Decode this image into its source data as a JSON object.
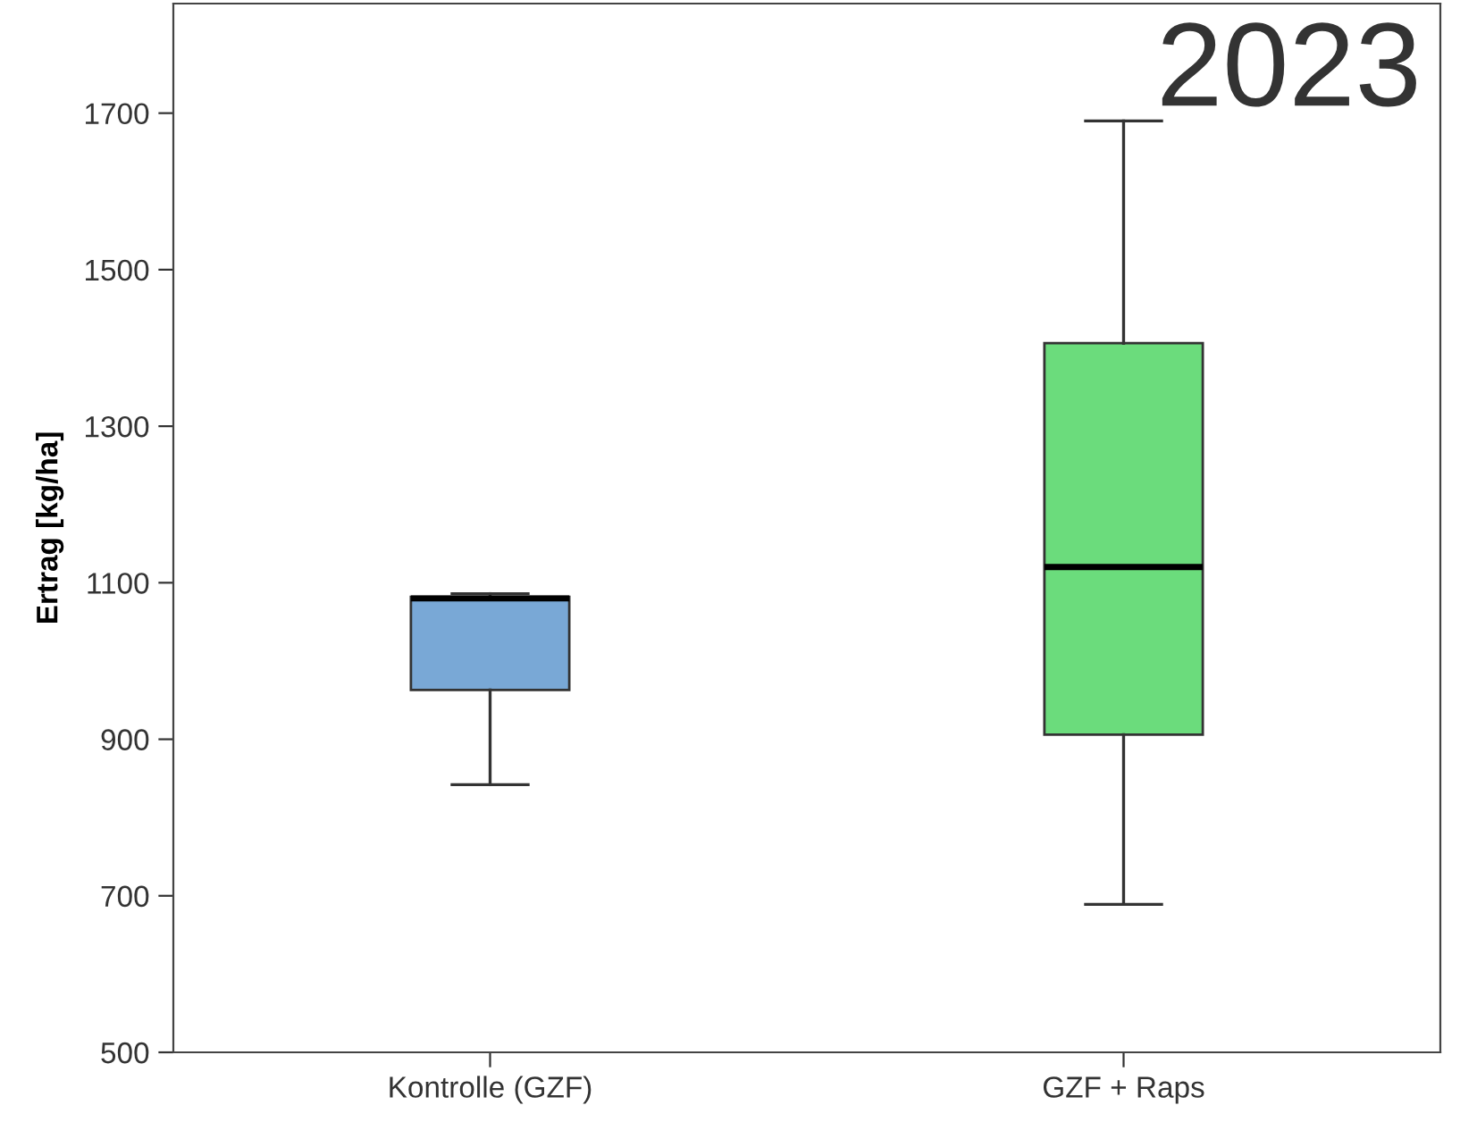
{
  "chart_data": {
    "type": "box",
    "ylabel": "Ertrag [kg/ha]",
    "categories": [
      "Kontrolle (GZF)",
      "GZF + Raps"
    ],
    "series": [
      {
        "colors": [
          "#79a8d6",
          "#6bdc7c"
        ],
        "boxes": [
          {
            "low": 842,
            "q1": 963,
            "median": 1080,
            "q3": 1082,
            "high": 1086
          },
          {
            "low": 689,
            "q1": 906,
            "median": 1120,
            "q3": 1406,
            "high": 1690
          }
        ]
      }
    ],
    "ylim": [
      500,
      1840
    ],
    "yticks": [
      500,
      700,
      900,
      1100,
      1300,
      1500,
      1700
    ],
    "grid": false,
    "legend": false,
    "annotations": [
      "2023"
    ]
  }
}
